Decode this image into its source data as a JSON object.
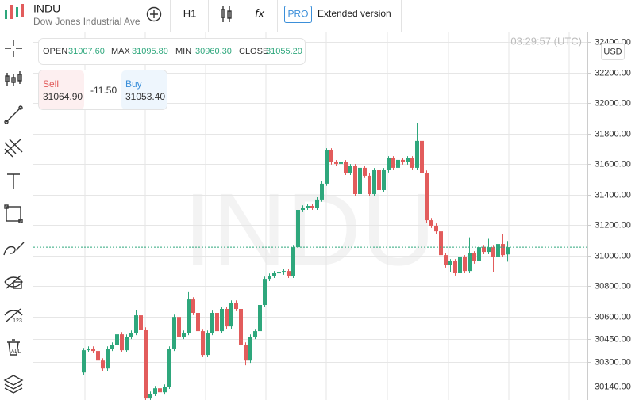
{
  "header": {
    "symbol": "INDU",
    "name": "Dow Jones Industrial Ave",
    "timeframe": "H1",
    "function": "fx",
    "pro": "PRO",
    "extended": "Extended version"
  },
  "left_toolbar": {
    "badge_numbers": "123",
    "badge_all": "ALL"
  },
  "info": {
    "open_label": "OPEN",
    "open": "31007.60",
    "max_label": "MAX",
    "max": "31095.80",
    "min_label": "MIN",
    "min": "30960.30",
    "close_label": "CLOSE",
    "close": "31055.20"
  },
  "trade": {
    "sell_label": "Sell",
    "sell": "31064.90",
    "spread": "-11.50",
    "buy_label": "Buy",
    "buy": "31053.40"
  },
  "time": "03:29:57 (UTC)",
  "currency": "USD",
  "watermark": "INDU",
  "chart_data": {
    "type": "candlestick",
    "up_color": "#2ea77c",
    "down_color": "#e25c5c",
    "grid": true,
    "ylim": [
      30052,
      32470
    ],
    "yticks": [
      {
        "value": 32400,
        "label": "32400.00"
      },
      {
        "value": 32200,
        "label": "32200.00"
      },
      {
        "value": 32000,
        "label": "32000.00"
      },
      {
        "value": 31800,
        "label": "31800.00"
      },
      {
        "value": 31600,
        "label": "31600.00"
      },
      {
        "value": 31400,
        "label": "31400.00"
      },
      {
        "value": 31200,
        "label": "31200.00"
      },
      {
        "value": 31000,
        "label": "31000.00"
      },
      {
        "value": 30800,
        "label": "30800.00"
      },
      {
        "value": 30600,
        "label": "30600.00"
      },
      {
        "value": 30450,
        "label": "30450.00"
      },
      {
        "value": 30300,
        "label": "30300.00"
      },
      {
        "value": 30140,
        "label": "30140.00"
      }
    ],
    "open": [
      30233,
      30379,
      30389,
      30374,
      30311,
      30259,
      30389,
      30415,
      30483,
      30379,
      30467,
      30493,
      30608,
      30514,
      30062,
      30093,
      30129,
      30103,
      30140,
      30389,
      30597,
      30467,
      30493,
      30712,
      30624,
      30504,
      30348,
      30493,
      30624,
      30504,
      30650,
      30535,
      30691,
      30650,
      30415,
      30311,
      30467,
      30504,
      30676,
      30847,
      30868,
      30884,
      30889,
      30899,
      30868,
      31055,
      31300,
      31315,
      31326,
      31315,
      31368,
      31472,
      31690,
      31612,
      31602,
      31612,
      31544,
      31586,
      31404,
      31576,
      31524,
      31404,
      31560,
      31430,
      31560,
      31638,
      31576,
      31628,
      31612,
      31638,
      31576,
      31753,
      31544,
      31232,
      31196,
      31159,
      31003,
      30936,
      30962,
      30884,
      30988,
      30899,
      31014,
      30962,
      31055,
      31024,
      31055,
      30988,
      31076,
      31007.6
    ],
    "high": [
      30394,
      30404,
      30404,
      30389,
      30326,
      30404,
      30430,
      30498,
      30498,
      30482,
      30508,
      30640,
      30623,
      30529,
      30108,
      30144,
      30144,
      30155,
      30404,
      30612,
      30612,
      30508,
      30760,
      30727,
      30639,
      30519,
      30508,
      30639,
      30639,
      30665,
      30665,
      30706,
      30706,
      30665,
      30430,
      30482,
      30519,
      30691,
      30862,
      30883,
      30899,
      30904,
      30914,
      30914,
      31070,
      31315,
      31330,
      31341,
      31341,
      31383,
      31487,
      31705,
      31705,
      31627,
      31627,
      31627,
      31601,
      31601,
      31591,
      31591,
      31539,
      31575,
      31575,
      31575,
      31653,
      31653,
      31643,
      31643,
      31653,
      31653,
      31872,
      31768,
      31559,
      31247,
      31211,
      31174,
      31018,
      30977,
      30977,
      31003,
      31003,
      31120,
      31029,
      31150,
      31070,
      31110,
      31070,
      31091,
      31140,
      31095.8
    ],
    "low": [
      30218,
      30364,
      30359,
      30296,
      30244,
      30244,
      30374,
      30400,
      30364,
      30364,
      30452,
      30478,
      30499,
      30040,
      30047,
      30078,
      30088,
      30088,
      30125,
      30374,
      30452,
      30452,
      30478,
      30609,
      30489,
      30333,
      30333,
      30478,
      30489,
      30489,
      30520,
      30520,
      30635,
      30400,
      30280,
      30296,
      30452,
      30489,
      30661,
      30832,
      30853,
      30869,
      30874,
      30853,
      30853,
      31040,
      31285,
      31300,
      31300,
      31300,
      31353,
      31457,
      31597,
      31587,
      31587,
      31529,
      31529,
      31389,
      31389,
      31509,
      31389,
      31389,
      31415,
      31415,
      31545,
      31561,
      31561,
      31597,
      31597,
      31561,
      31561,
      31529,
      31217,
      31181,
      31144,
      30988,
      30921,
      30890,
      30869,
      30869,
      30884,
      30884,
      30947,
      30947,
      31009,
      31009,
      30890,
      30973,
      30988,
      30960.3
    ],
    "close": [
      30379,
      30389,
      30374,
      30311,
      30259,
      30389,
      30415,
      30483,
      30379,
      30467,
      30493,
      30608,
      30514,
      30062,
      30093,
      30129,
      30103,
      30140,
      30389,
      30597,
      30467,
      30493,
      30712,
      30624,
      30504,
      30348,
      30493,
      30624,
      30504,
      30650,
      30535,
      30691,
      30650,
      30415,
      30311,
      30467,
      30504,
      30676,
      30847,
      30868,
      30884,
      30889,
      30899,
      30868,
      31055,
      31300,
      31315,
      31326,
      31315,
      31368,
      31472,
      31690,
      31612,
      31602,
      31612,
      31544,
      31586,
      31404,
      31576,
      31524,
      31404,
      31560,
      31430,
      31560,
      31638,
      31576,
      31628,
      31612,
      31638,
      31576,
      31753,
      31544,
      31232,
      31196,
      31159,
      31003,
      30936,
      30962,
      30884,
      30988,
      30899,
      31014,
      30962,
      31055,
      31024,
      31055,
      30988,
      31076,
      31003,
      31055.2
    ]
  }
}
